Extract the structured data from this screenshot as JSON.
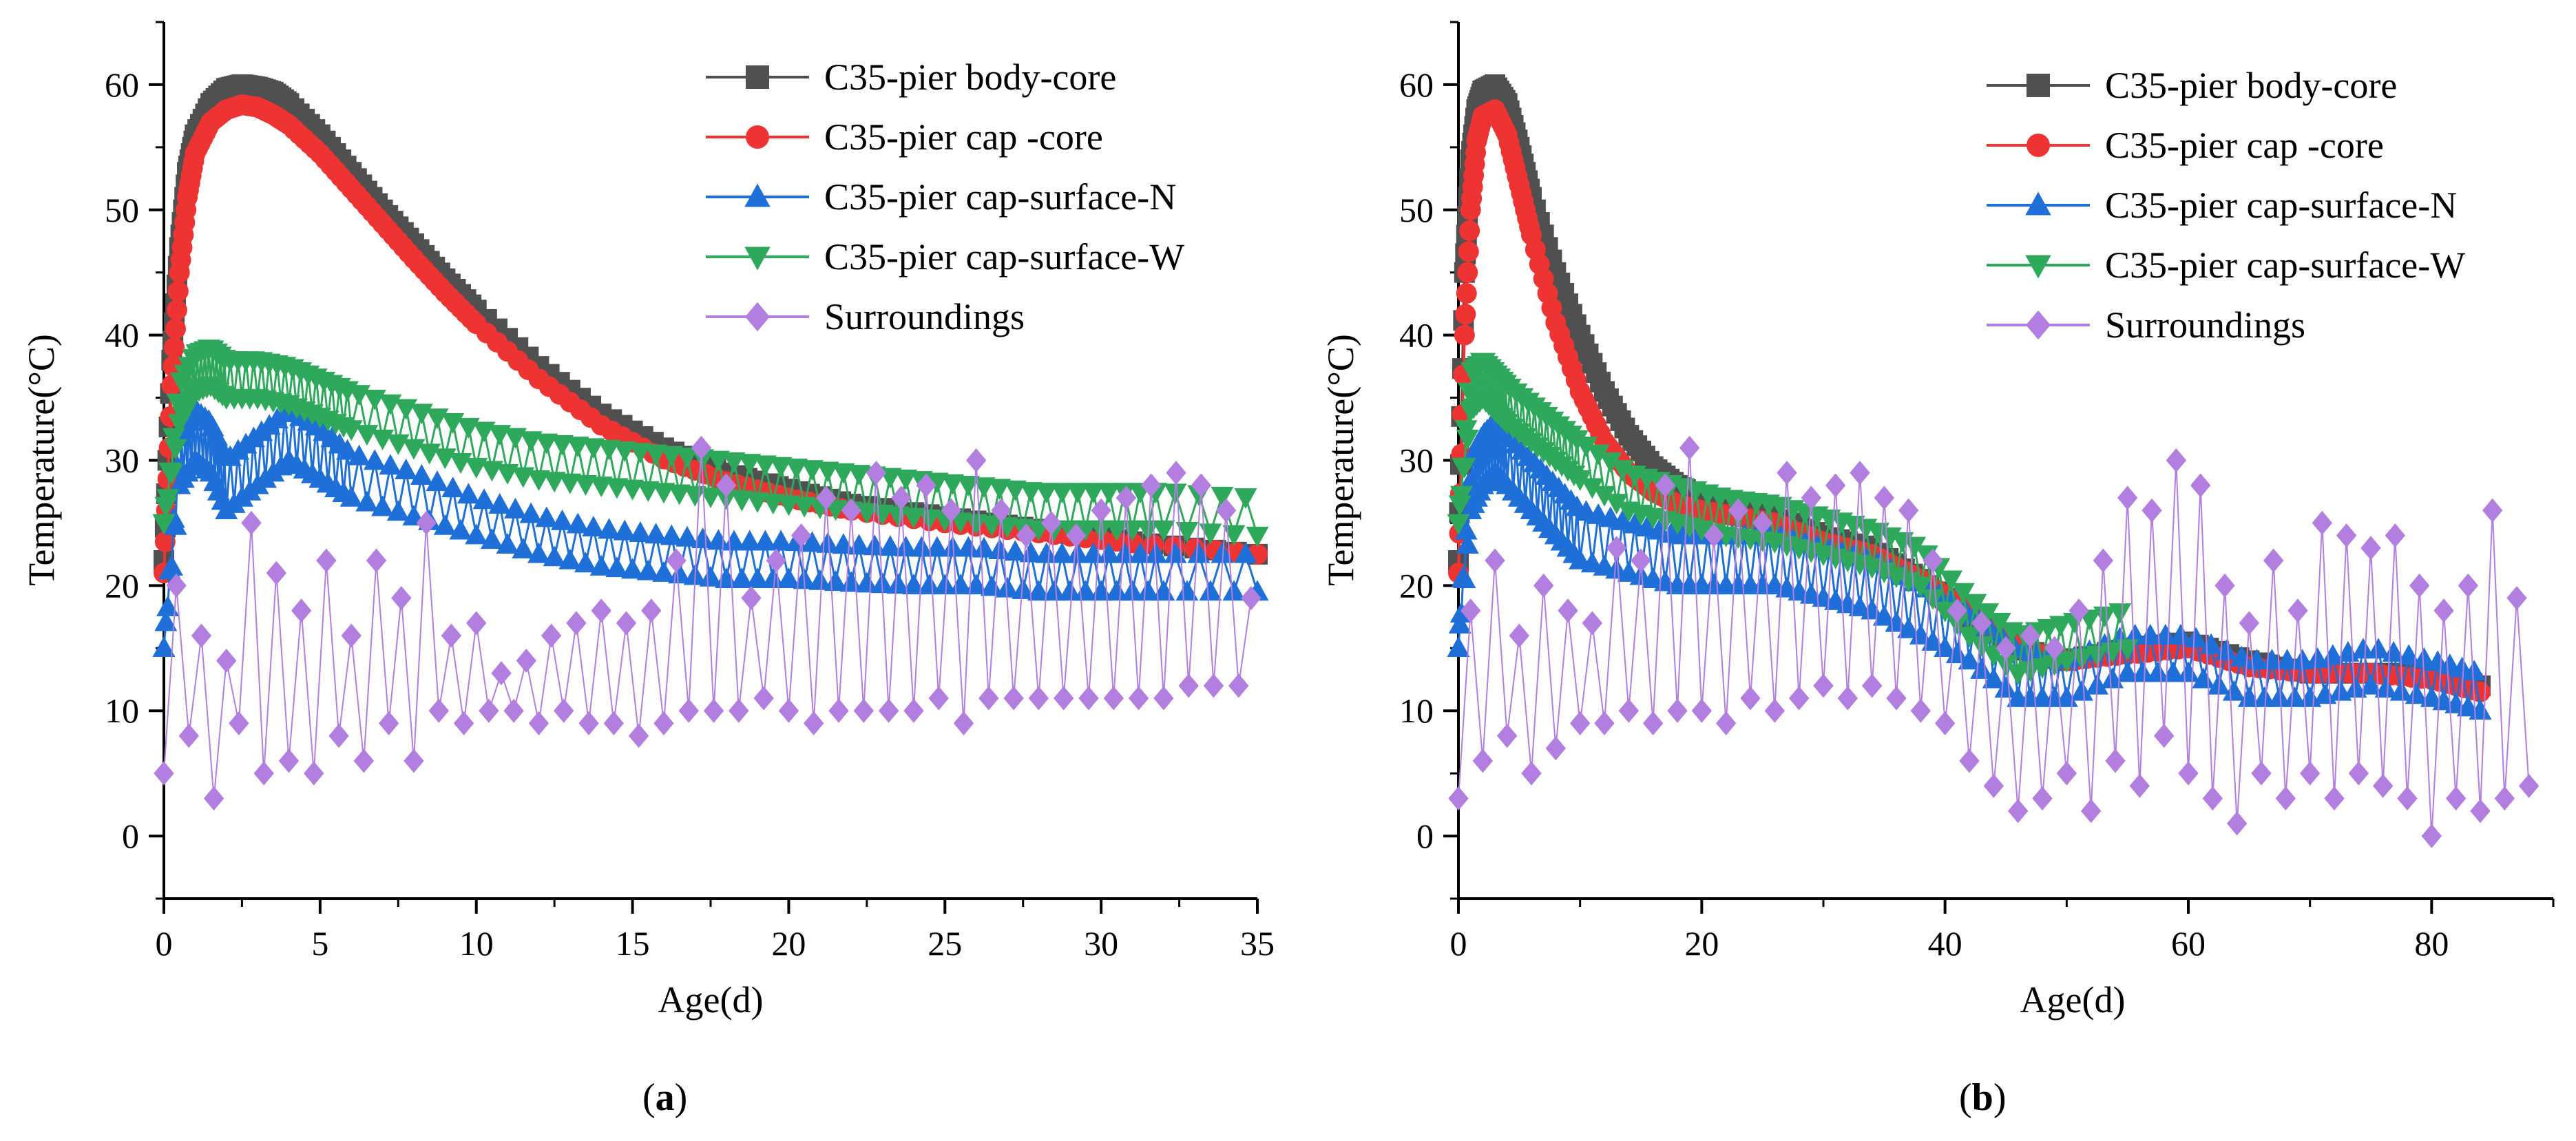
{
  "chart_data": [
    {
      "panel": "a",
      "panel_label_open": "(",
      "panel_label_letter": "a",
      "panel_label_close": ")",
      "type": "line",
      "xlabel": "Age(d)",
      "ylabel": "Temperature(°C)",
      "xlim": [
        0,
        35
      ],
      "ylim": [
        -5,
        65
      ],
      "xticks": [
        0,
        5,
        10,
        15,
        20,
        25,
        30,
        35
      ],
      "yticks": [
        0,
        10,
        20,
        30,
        40,
        50,
        60
      ],
      "grid": false,
      "legend_position": "top-right",
      "series": [
        {
          "name": "C35-pier body-core",
          "color": "#505050",
          "marker": "square",
          "x": [
            0,
            0.25,
            0.5,
            0.75,
            1,
            1.5,
            2,
            2.5,
            3,
            3.5,
            4,
            5,
            6,
            7,
            8,
            9,
            10,
            12,
            14,
            16,
            18,
            20,
            22,
            25,
            28,
            31,
            35
          ],
          "y": [
            22,
            38,
            47,
            53,
            56,
            58.5,
            59.7,
            60,
            59.8,
            59.4,
            58.5,
            56,
            53,
            50,
            47.3,
            44.5,
            42,
            37.5,
            33.7,
            31,
            29,
            27.7,
            26.5,
            25.5,
            24.5,
            23.5,
            22.5
          ]
        },
        {
          "name": "C35-pier cap -core",
          "color": "#ee3333",
          "marker": "circle",
          "x": [
            0,
            0.25,
            0.5,
            0.75,
            1,
            1.5,
            2,
            2.5,
            3,
            3.5,
            4,
            5,
            6,
            7,
            8,
            9,
            10,
            12,
            14,
            16,
            18,
            20,
            22,
            25,
            28,
            31,
            35
          ],
          "y": [
            21,
            36,
            45,
            51,
            54.5,
            57,
            58,
            58.4,
            58.2,
            57.6,
            56.8,
            54.5,
            51.7,
            48.9,
            46.1,
            43.4,
            40.9,
            36.5,
            32.8,
            30.1,
            28.3,
            27,
            26,
            25,
            24.2,
            23.4,
            22.5
          ]
        },
        {
          "name": "C35-pier cap-surface-N",
          "color": "#1f6fd8",
          "marker": "triangle-up",
          "x": [
            0,
            0.5,
            1,
            1.5,
            2,
            3,
            4,
            5,
            6,
            8,
            10,
            12,
            14,
            16,
            18,
            20,
            22,
            24,
            26,
            28,
            30,
            32,
            35
          ],
          "y": [
            15,
            28,
            30,
            29,
            26,
            28,
            30,
            28.5,
            27,
            25.5,
            24,
            22.5,
            21.5,
            21,
            20.5,
            20.5,
            20.2,
            20,
            20,
            19.5,
            19.5,
            19.5,
            19.5
          ],
          "y_band": [
            0,
            3.5,
            4,
            4,
            4,
            4,
            4,
            4,
            3.5,
            3.5,
            3,
            3,
            3,
            3,
            3,
            3,
            3,
            3,
            3,
            3,
            3,
            3,
            3
          ]
        },
        {
          "name": "C35-pier cap-surface-W",
          "color": "#2ea85a",
          "marker": "triangle-down",
          "x": [
            0,
            0.5,
            1,
            1.5,
            2,
            3,
            4,
            5,
            6,
            8,
            10,
            12,
            14,
            16,
            18,
            20,
            22,
            24,
            26,
            28,
            30,
            32,
            35
          ],
          "y": [
            25,
            33,
            35.5,
            36,
            35,
            35,
            34.5,
            33.5,
            32.5,
            31,
            29.5,
            28.5,
            28,
            27.5,
            27,
            26.5,
            26,
            25.5,
            25,
            24.5,
            24.5,
            24.5,
            24
          ],
          "y_band": [
            0,
            3,
            3,
            3,
            3,
            3,
            3,
            3,
            3,
            3,
            3,
            3,
            3,
            3,
            3,
            3,
            3,
            3,
            3,
            3,
            3,
            3,
            3
          ]
        },
        {
          "name": "Surroundings",
          "color": "#b27ee0",
          "marker": "diamond",
          "x": [
            0,
            0.4,
            0.8,
            1.2,
            1.6,
            2,
            2.4,
            2.8,
            3.2,
            3.6,
            4,
            4.4,
            4.8,
            5.2,
            5.6,
            6,
            6.4,
            6.8,
            7.2,
            7.6,
            8,
            8.4,
            8.8,
            9.2,
            9.6,
            10,
            10.4,
            10.8,
            11.2,
            11.6,
            12,
            12.4,
            12.8,
            13.2,
            13.6,
            14,
            14.4,
            14.8,
            15.2,
            15.6,
            16,
            16.4,
            16.8,
            17.2,
            17.6,
            18,
            18.4,
            18.8,
            19.2,
            19.6,
            20,
            20.4,
            20.8,
            21.2,
            21.6,
            22,
            22.4,
            22.8,
            23.2,
            23.6,
            24,
            24.4,
            24.8,
            25.2,
            25.6,
            26,
            26.4,
            26.8,
            27.2,
            27.6,
            28,
            28.4,
            28.8,
            29.2,
            29.6,
            30,
            30.4,
            30.8,
            31.2,
            31.6,
            32,
            32.4,
            32.8,
            33.2,
            33.6,
            34,
            34.4,
            34.8
          ],
          "y": [
            5,
            20,
            8,
            16,
            3,
            14,
            9,
            25,
            5,
            21,
            6,
            18,
            5,
            22,
            8,
            16,
            6,
            22,
            9,
            19,
            6,
            25,
            10,
            16,
            9,
            17,
            10,
            13,
            10,
            14,
            9,
            16,
            10,
            17,
            9,
            18,
            9,
            17,
            8,
            18,
            9,
            22,
            10,
            31,
            10,
            28,
            10,
            19,
            11,
            22,
            10,
            24,
            9,
            27,
            10,
            26,
            10,
            29,
            10,
            27,
            10,
            28,
            11,
            26,
            9,
            30,
            11,
            26,
            11,
            24,
            11,
            25,
            11,
            24,
            11,
            26,
            11,
            27,
            11,
            28,
            11,
            29,
            12,
            28,
            12,
            26,
            12,
            19
          ]
        }
      ]
    },
    {
      "panel": "b",
      "panel_label_open": "(",
      "panel_label_letter": "b",
      "panel_label_close": ")",
      "type": "line",
      "xlabel": "Age(d)",
      "ylabel": "Temperature(°C)",
      "xlim": [
        0,
        90
      ],
      "ylim": [
        -5,
        65
      ],
      "xticks": [
        0,
        20,
        40,
        60,
        80
      ],
      "yticks": [
        0,
        10,
        20,
        30,
        40,
        50,
        60
      ],
      "grid": false,
      "legend_position": "top-right",
      "series": [
        {
          "name": "C35-pier body-core",
          "color": "#505050",
          "marker": "square",
          "x": [
            0,
            0.5,
            1,
            1.5,
            2,
            3,
            4,
            5,
            6,
            8,
            10,
            12,
            14,
            16,
            18,
            20,
            23,
            26,
            30,
            34,
            38,
            42,
            46,
            50,
            55,
            60,
            65,
            70,
            75,
            80,
            84
          ],
          "y": [
            22,
            45,
            54,
            58,
            59.5,
            60,
            58.5,
            55,
            51,
            45,
            40,
            35.5,
            32,
            29.5,
            28,
            27,
            26.5,
            25.5,
            24,
            23,
            20.5,
            17.5,
            15,
            14,
            15,
            15.5,
            14,
            13,
            13,
            13,
            12
          ]
        },
        {
          "name": "C35-pier cap -core",
          "color": "#ee3333",
          "marker": "circle",
          "x": [
            0,
            0.5,
            1,
            1.5,
            2,
            3,
            4,
            5,
            6,
            8,
            10,
            12,
            14,
            16,
            18,
            20,
            23,
            26,
            30,
            34,
            38,
            42,
            46,
            50,
            55,
            60,
            65,
            70,
            75,
            80,
            84
          ],
          "y": [
            21,
            40,
            50,
            55.5,
            57.5,
            58,
            56,
            52,
            48,
            41,
            35.5,
            31.5,
            29,
            27.5,
            26.5,
            26,
            25.5,
            25,
            23.5,
            22.5,
            20.5,
            18,
            15,
            14,
            14.5,
            15,
            13.5,
            13,
            13,
            12.5,
            11.5
          ]
        },
        {
          "name": "C35-pier cap-surface-N",
          "color": "#1f6fd8",
          "marker": "triangle-up",
          "x": [
            0,
            1,
            2,
            3,
            4,
            6,
            8,
            10,
            14,
            18,
            22,
            26,
            30,
            34,
            38,
            42,
            46,
            50,
            55,
            60,
            65,
            70,
            75,
            80,
            84
          ],
          "y": [
            15,
            26,
            28,
            29,
            28,
            26,
            24,
            22,
            21,
            20,
            20,
            20,
            19,
            18,
            16,
            14,
            11,
            11,
            13,
            13,
            11,
            11,
            12,
            11,
            10
          ],
          "y_band": [
            0,
            4,
            4,
            4,
            4,
            4,
            4,
            4,
            4,
            4,
            4,
            4,
            4,
            4,
            4,
            4,
            4,
            3,
            3,
            3,
            3,
            3,
            3,
            3,
            3
          ]
        },
        {
          "name": "C35-pier cap-surface-W",
          "color": "#2ea85a",
          "marker": "triangle-down",
          "x": [
            0,
            1,
            2,
            3,
            4,
            6,
            8,
            10,
            14,
            18,
            22,
            26,
            30,
            34,
            38,
            42,
            46,
            50,
            55
          ],
          "y": [
            25,
            34,
            35,
            34,
            33,
            31.5,
            30,
            28.5,
            26,
            25,
            24,
            23.5,
            22.5,
            21.5,
            20,
            16,
            13,
            14,
            15
          ],
          "y_band": [
            0,
            3,
            3,
            3,
            3,
            3,
            3,
            3,
            3,
            3,
            3,
            3,
            3,
            3,
            3,
            3,
            3,
            3,
            3
          ]
        },
        {
          "name": "Surroundings",
          "color": "#b27ee0",
          "marker": "diamond",
          "x": [
            0,
            1,
            2,
            3,
            4,
            5,
            6,
            7,
            8,
            9,
            10,
            11,
            12,
            13,
            14,
            15,
            16,
            17,
            18,
            19,
            20,
            21,
            22,
            23,
            24,
            25,
            26,
            27,
            28,
            29,
            30,
            31,
            32,
            33,
            34,
            35,
            36,
            37,
            38,
            39,
            40,
            41,
            42,
            43,
            44,
            45,
            46,
            47,
            48,
            49,
            50,
            51,
            52,
            53,
            54,
            55,
            56,
            57,
            58,
            59,
            60,
            61,
            62,
            63,
            64,
            65,
            66,
            67,
            68,
            69,
            70,
            71,
            72,
            73,
            74,
            75,
            76,
            77,
            78,
            79,
            80,
            81,
            82,
            83,
            84,
            85,
            86,
            87,
            88
          ],
          "y": [
            3,
            18,
            6,
            22,
            8,
            16,
            5,
            20,
            7,
            18,
            9,
            17,
            9,
            23,
            10,
            22,
            9,
            28,
            10,
            31,
            10,
            24,
            9,
            26,
            11,
            25,
            10,
            29,
            11,
            27,
            12,
            28,
            11,
            29,
            12,
            27,
            11,
            26,
            10,
            22,
            9,
            18,
            6,
            17,
            4,
            15,
            2,
            16,
            3,
            15,
            5,
            18,
            2,
            22,
            6,
            27,
            4,
            26,
            8,
            30,
            5,
            28,
            3,
            20,
            1,
            17,
            5,
            22,
            3,
            18,
            5,
            25,
            3,
            24,
            5,
            23,
            4,
            24,
            3,
            20,
            0,
            18,
            3,
            20,
            2,
            26,
            3,
            19,
            4
          ]
        }
      ]
    }
  ]
}
